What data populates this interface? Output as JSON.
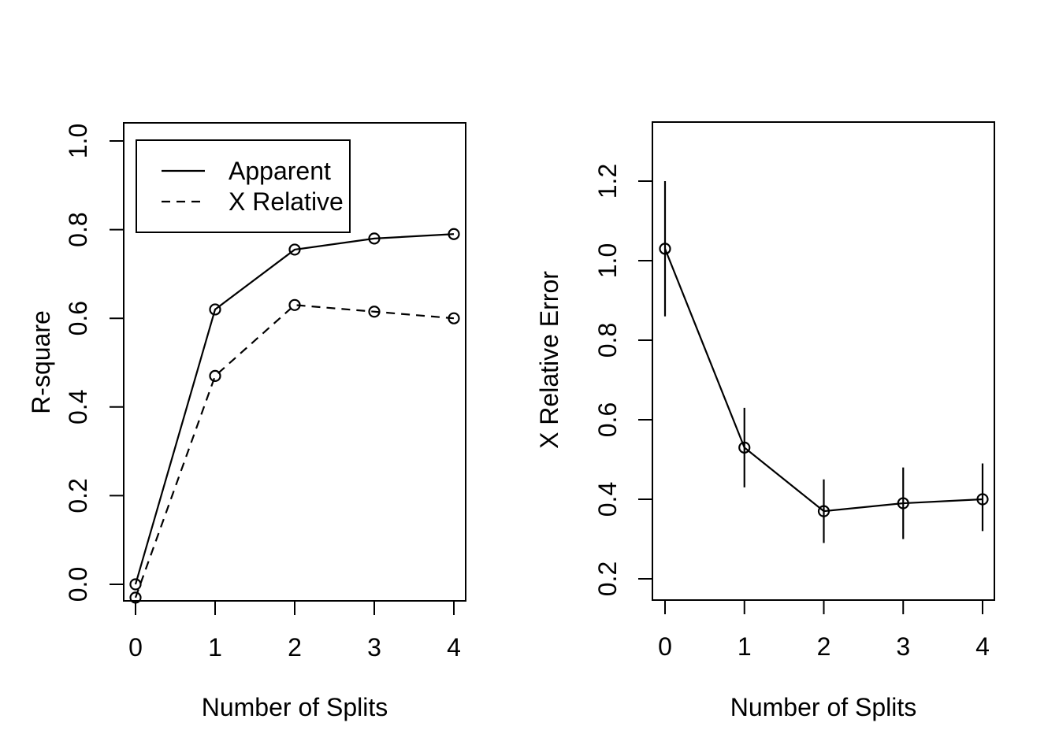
{
  "figure": {
    "background": "#ffffff",
    "foreground": "#000000"
  },
  "chart_data": [
    {
      "type": "line",
      "title": "",
      "xlabel": "Number of Splits",
      "ylabel": "R-square",
      "x": [
        0,
        1,
        2,
        3,
        4
      ],
      "xtick_labels": [
        "0",
        "1",
        "2",
        "3",
        "4"
      ],
      "ytick_labels": [
        "0.0",
        "0.2",
        "0.4",
        "0.6",
        "0.8",
        "1.0"
      ],
      "xlim": [
        -0.15,
        4.15
      ],
      "ylim": [
        -0.037,
        1.041
      ],
      "grid": false,
      "legend": {
        "position": "top-left",
        "entries": [
          "Apparent",
          "X Relative"
        ]
      },
      "series": [
        {
          "name": "Apparent",
          "line_style": "solid",
          "marker": "open-circle",
          "values": [
            0.0,
            0.62,
            0.755,
            0.78,
            0.79
          ]
        },
        {
          "name": "X Relative",
          "line_style": "dashed",
          "marker": "open-circle",
          "values": [
            -0.03,
            0.47,
            0.63,
            0.615,
            0.6
          ]
        }
      ]
    },
    {
      "type": "line",
      "title": "",
      "xlabel": "Number of Splits",
      "ylabel": "X Relative Error",
      "x": [
        0,
        1,
        2,
        3,
        4
      ],
      "xtick_labels": [
        "0",
        "1",
        "2",
        "3",
        "4"
      ],
      "ytick_labels": [
        "0.2",
        "0.4",
        "0.6",
        "0.8",
        "1.0",
        "1.2"
      ],
      "xlim": [
        -0.16,
        4.15
      ],
      "ylim": [
        0.147,
        1.352
      ],
      "grid": false,
      "legend": null,
      "series": [
        {
          "name": "X Relative Error",
          "line_style": "solid",
          "marker": "open-circle",
          "values": [
            1.03,
            0.53,
            0.37,
            0.39,
            0.4
          ],
          "error_low": [
            0.86,
            0.43,
            0.29,
            0.3,
            0.32
          ],
          "error_high": [
            1.2,
            0.63,
            0.45,
            0.48,
            0.49
          ]
        }
      ]
    }
  ]
}
